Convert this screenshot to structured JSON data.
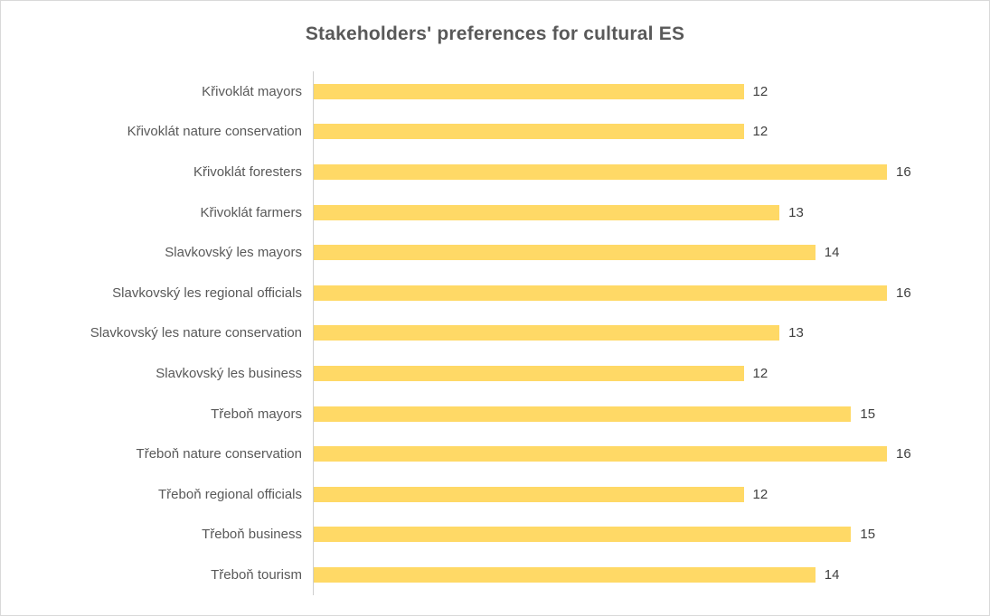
{
  "chart_data": {
    "type": "bar",
    "orientation": "horizontal",
    "title": "Stakeholders' preferences for cultural ES",
    "categories": [
      "Křivoklát mayors",
      "Křivoklát nature conservation",
      "Křivoklát foresters",
      "Křivoklát farmers",
      "Slavkovský les mayors",
      "Slavkovský les regional officials",
      "Slavkovský les nature conservation",
      "Slavkovský les business",
      "Třeboň mayors",
      "Třeboň nature conservation",
      "Třeboň regional officials",
      "Třeboň business",
      "Třeboň tourism"
    ],
    "values": [
      12,
      12,
      16,
      13,
      14,
      16,
      13,
      12,
      15,
      16,
      12,
      15,
      14
    ],
    "data_labels": [
      12,
      12,
      16,
      13,
      14,
      16,
      13,
      12,
      15,
      16,
      12,
      15,
      14
    ],
    "xlim": [
      0,
      16
    ],
    "xlabel": "",
    "ylabel": "",
    "grid": false,
    "legend": "none",
    "bar_color": "#FFD966",
    "title_color": "#595959",
    "category_label_color": "#595959",
    "value_label_color": "#404040",
    "axis_line_color": "#cfcfcf"
  }
}
